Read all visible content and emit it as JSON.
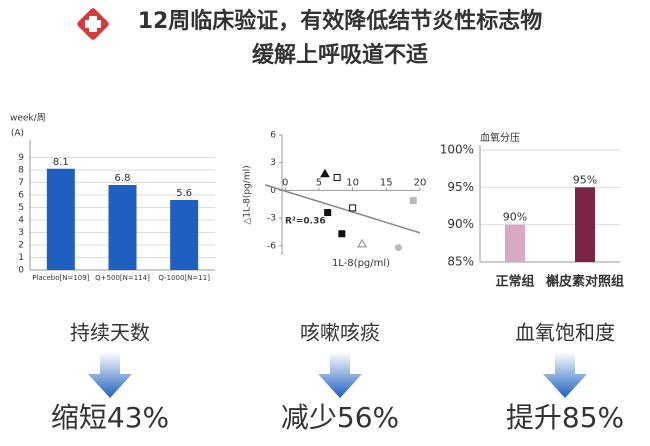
{
  "header": {
    "title": [
      "12周临床验证，有效降低结节炎性标志物",
      "缓解上呼吸道不适"
    ]
  },
  "chart_data": [
    {
      "type": "bar",
      "y_label": "week/周",
      "corner_label": "(A)",
      "categories": [
        "Placebo[N=109]",
        "Q+500[N=114]",
        "Q-1000[N=11]"
      ],
      "values": [
        8.1,
        6.8,
        5.6
      ],
      "color": "#1f5fbf",
      "ylim": [
        0,
        10
      ],
      "yticks": [
        0,
        1,
        2,
        3,
        4,
        5,
        6,
        7,
        8,
        9
      ],
      "grid": true
    },
    {
      "type": "scatter",
      "x_label": "1L-8(pg/ml)",
      "y_label": "△1L-8(pg/ml)",
      "annotation": "R²=0.36",
      "xlim": [
        -3,
        20
      ],
      "ylim": [
        -7,
        6
      ],
      "xticks": [
        0,
        5,
        10,
        15,
        20
      ],
      "yticks": [
        -6,
        -3,
        0,
        3,
        6
      ],
      "points": [
        {
          "x": 5.9,
          "y": 1.8,
          "shape": "triangle",
          "fill": "filled",
          "color": "#111111"
        },
        {
          "x": 7.7,
          "y": 1.4,
          "shape": "square",
          "fill": "open",
          "color": "#111111"
        },
        {
          "x": 6.3,
          "y": -2.4,
          "shape": "square",
          "fill": "filled",
          "color": "#111111"
        },
        {
          "x": 8.4,
          "y": -4.7,
          "shape": "square",
          "fill": "filled",
          "color": "#111111"
        },
        {
          "x": 10,
          "y": -1.9,
          "shape": "square",
          "fill": "open",
          "color": "#111111"
        },
        {
          "x": 11.4,
          "y": -5.8,
          "shape": "triangle",
          "fill": "open",
          "color": "#888888"
        },
        {
          "x": 19,
          "y": -1.1,
          "shape": "square",
          "fill": "filled",
          "color": "#bbbbbb"
        },
        {
          "x": 16.8,
          "y": -6.2,
          "shape": "circle",
          "fill": "filled",
          "color": "#bbbbbb"
        }
      ],
      "trendline": {
        "x": [
          -3,
          20
        ],
        "y": [
          0.6,
          -4.6
        ],
        "color": "#888888"
      }
    },
    {
      "type": "bar",
      "y_label": "血氧分压",
      "categories": [
        "正常组",
        "槲皮素对照组"
      ],
      "values": [
        90,
        95
      ],
      "value_labels": [
        "90%",
        "95%"
      ],
      "colors": [
        "#d9a9c4",
        "#7b2445"
      ],
      "ylim": [
        85,
        100
      ],
      "yticks": [
        {
          "value": 85,
          "label": "85%"
        },
        {
          "value": 90,
          "label": "90%"
        },
        {
          "value": 95,
          "label": "95%"
        },
        {
          "value": 100,
          "label": "100%"
        }
      ],
      "grid": true
    }
  ],
  "panels": [
    {
      "label": "持续天数",
      "result": "缩短43%"
    },
    {
      "label": "咳嗽咳痰",
      "result": "减少56%"
    },
    {
      "label": "血氧饱和度",
      "result": "提升85%"
    }
  ]
}
